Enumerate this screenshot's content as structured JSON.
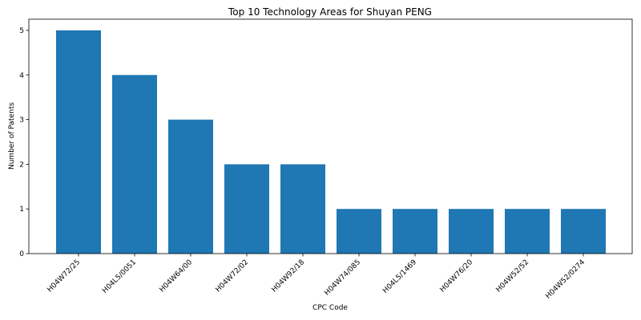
{
  "chart_data": {
    "type": "bar",
    "title": "Top 10 Technology Areas for Shuyan PENG",
    "xlabel": "CPC Code",
    "ylabel": "Number of Patents",
    "categories": [
      "H04W72/25",
      "H04L5/0051",
      "H04W64/00",
      "H04W72/02",
      "H04W92/18",
      "H04W74/085",
      "H04L5/1469",
      "H04W76/20",
      "H04W52/52",
      "H04W52/0274"
    ],
    "values": [
      5,
      4,
      3,
      2,
      2,
      1,
      1,
      1,
      1,
      1
    ],
    "ylim": [
      0,
      5.25
    ],
    "yticks": [
      0,
      1,
      2,
      3,
      4,
      5
    ],
    "grid": false,
    "bar_color": "#1f77b4"
  }
}
